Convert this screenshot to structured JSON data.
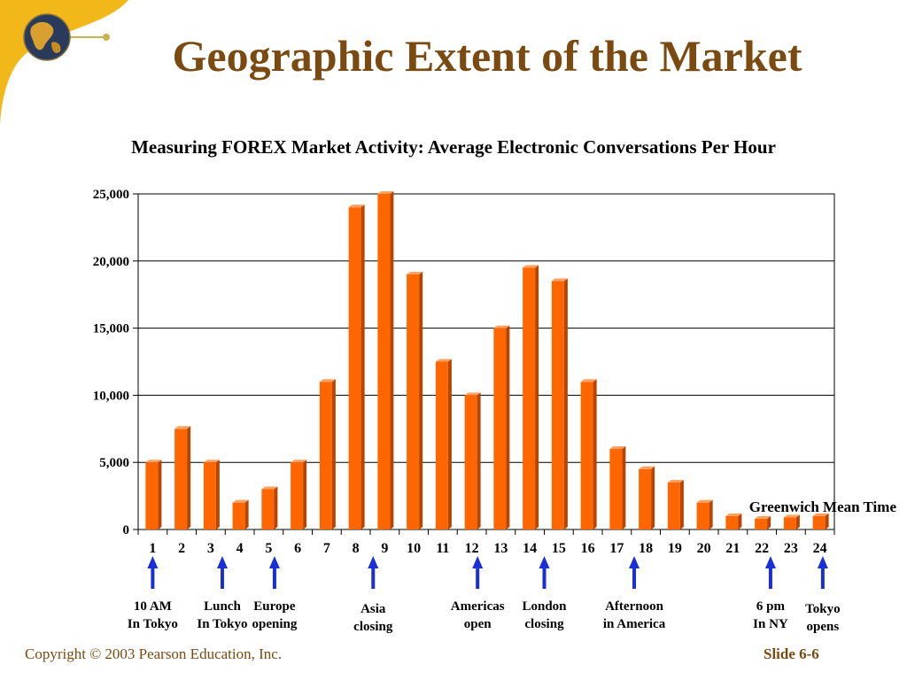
{
  "slide": {
    "title": "Geographic Extent of the Market",
    "copyright": "Copyright © 2003 Pearson Education, Inc.",
    "slide_number": "Slide 6-6"
  },
  "colors": {
    "title": "#7a4a10",
    "bar": "#ff6600",
    "bar_dark": "#b84400",
    "arrow": "#1a2fd6",
    "grid": "#000000"
  },
  "icons": [
    "globe-icon"
  ],
  "chart_data": {
    "type": "bar",
    "title": "Measuring FOREX Market Activity: Average Electronic Conversations Per Hour",
    "xlabel": "Greenwich Mean Time",
    "ylabel": "",
    "categories": [
      "1",
      "2",
      "3",
      "4",
      "5",
      "6",
      "7",
      "8",
      "9",
      "10",
      "11",
      "12",
      "13",
      "14",
      "15",
      "16",
      "17",
      "18",
      "19",
      "20",
      "21",
      "22",
      "23",
      "24"
    ],
    "values": [
      5000,
      7500,
      5000,
      2000,
      3000,
      5000,
      11000,
      24000,
      25000,
      19000,
      12500,
      10000,
      15000,
      19500,
      18500,
      11000,
      6000,
      4500,
      3500,
      2000,
      1000,
      800,
      900,
      1000
    ],
    "y_tick_labels": [
      "0",
      "5,000",
      "10,000",
      "15,000",
      "20,000",
      "25,000"
    ],
    "ylim": [
      0,
      25000
    ],
    "grid": true,
    "annotations": [
      {
        "hour": 1,
        "lines": [
          "10 AM",
          "In Tokyo"
        ]
      },
      {
        "hour": 3.4,
        "lines": [
          "Lunch",
          "In Tokyo"
        ]
      },
      {
        "hour": 5.2,
        "lines": [
          "Europe",
          "opening"
        ]
      },
      {
        "hour": 8.6,
        "lines": [
          "Asia",
          "closing"
        ]
      },
      {
        "hour": 12.2,
        "lines": [
          "Americas",
          "open"
        ]
      },
      {
        "hour": 14.5,
        "lines": [
          "London",
          "closing"
        ]
      },
      {
        "hour": 17.6,
        "lines": [
          "Afternoon",
          "in America"
        ]
      },
      {
        "hour": 22.3,
        "lines": [
          "6 pm",
          "In NY"
        ]
      },
      {
        "hour": 24.1,
        "lines": [
          "Tokyo",
          "opens"
        ]
      }
    ]
  }
}
